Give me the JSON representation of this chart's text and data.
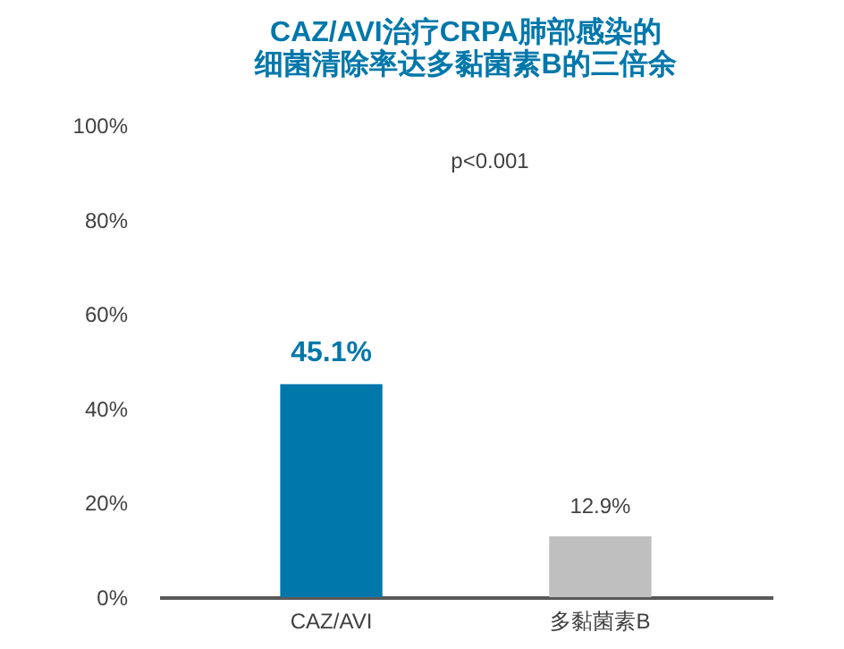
{
  "chart_data": {
    "type": "bar",
    "title": "CAZ/AVI治疗CRPA肺部感染的",
    "subtitle": "细菌清除率达多黏菌素B的三倍余",
    "categories": [
      "CAZ/AVI",
      "多黏菌素B"
    ],
    "values": [
      45.1,
      12.9
    ],
    "colors": [
      "#0077aa",
      "#bfbfbf"
    ],
    "value_labels": [
      "45.1%",
      "12.9%"
    ],
    "ylim": [
      0,
      100
    ],
    "yticks": [
      {
        "value": 0,
        "label": "0%"
      },
      {
        "value": 20,
        "label": "20%"
      },
      {
        "value": 40,
        "label": "40%"
      },
      {
        "value": 60,
        "label": "60%"
      },
      {
        "value": 80,
        "label": "80%"
      },
      {
        "value": 100,
        "label": "100%"
      }
    ],
    "annotations": [
      "p<0.001"
    ],
    "grid": false
  }
}
